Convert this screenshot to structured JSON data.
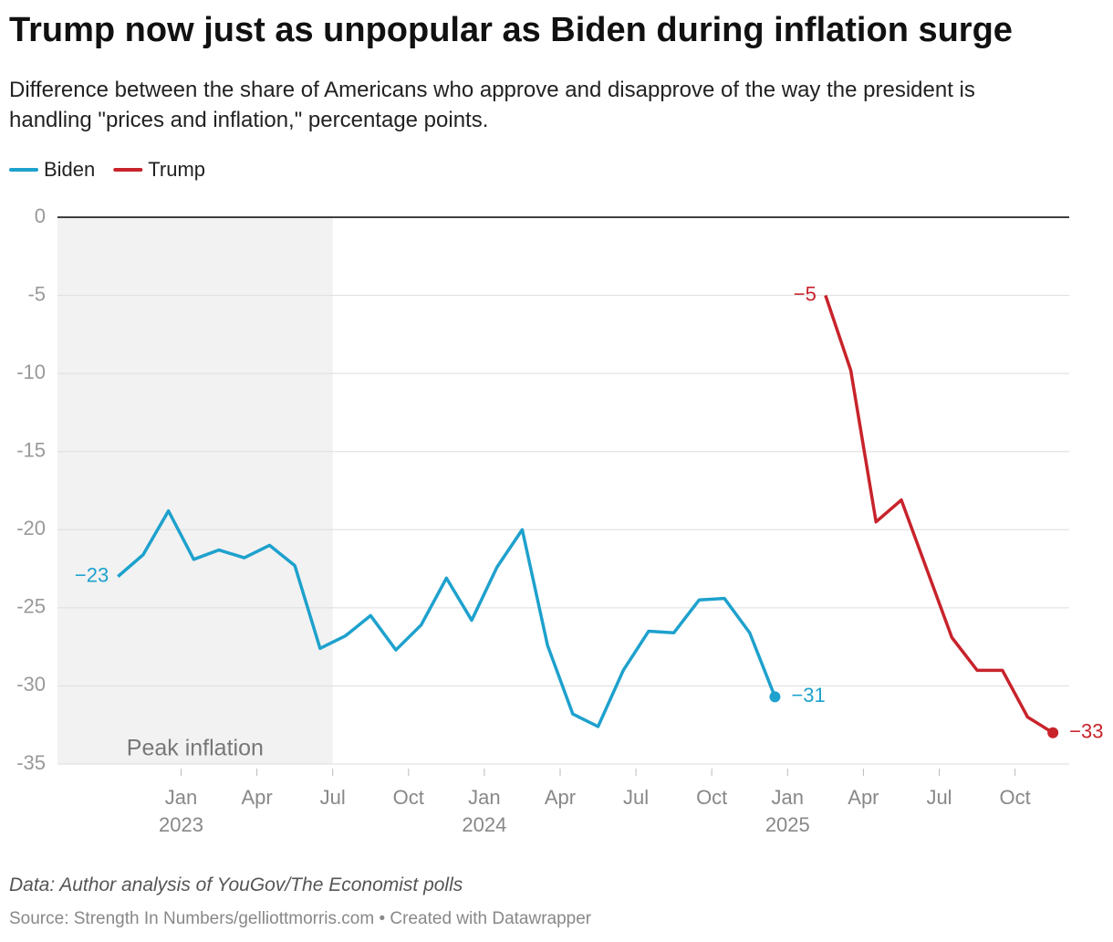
{
  "chart_data": {
    "type": "line",
    "title": "Trump now just as unpopular as Biden during inflation surge",
    "subtitle": "Difference between the share of Americans who approve and disapprove of the way the president is handling \"prices and inflation,\" percentage points.",
    "notes": "Data: Author analysis of YouGov/The Economist polls",
    "source": "Source: Strength In Numbers/gelliottmorris.com • Created with Datawrapper",
    "highlight": {
      "label": "Peak inflation",
      "from": "2022-08",
      "to": "2023-07",
      "color": "#f2f2f2"
    },
    "xlim": [
      "2022-08",
      "2025-12"
    ],
    "xticks": [
      {
        "value": "2023-01",
        "label": "Jan 2023"
      },
      {
        "value": "2023-04",
        "label": "Apr"
      },
      {
        "value": "2023-07",
        "label": "Jul"
      },
      {
        "value": "2023-10",
        "label": "Oct"
      },
      {
        "value": "2024-01",
        "label": "Jan 2024"
      },
      {
        "value": "2024-04",
        "label": "Apr"
      },
      {
        "value": "2024-07",
        "label": "Jul"
      },
      {
        "value": "2024-10",
        "label": "Oct"
      },
      {
        "value": "2025-01",
        "label": "Jan 2025"
      },
      {
        "value": "2025-04",
        "label": "Apr"
      },
      {
        "value": "2025-07",
        "label": "Jul"
      },
      {
        "value": "2025-10",
        "label": "Oct"
      }
    ],
    "ylim": [
      -35,
      0
    ],
    "yticks": [
      0,
      -5,
      -10,
      -15,
      -20,
      -25,
      -30,
      -35
    ],
    "grid": true,
    "legend": "top-left",
    "series": [
      {
        "name": "Biden",
        "color": "#1ea1cd",
        "x": [
          "2022-10",
          "2022-11",
          "2022-12",
          "2023-01",
          "2023-02",
          "2023-03",
          "2023-04",
          "2023-05",
          "2023-06",
          "2023-07",
          "2023-08",
          "2023-09",
          "2023-10",
          "2023-11",
          "2023-12",
          "2024-01",
          "2024-02",
          "2024-03",
          "2024-04",
          "2024-05",
          "2024-06",
          "2024-07",
          "2024-08",
          "2024-09",
          "2024-10",
          "2024-11",
          "2024-12"
        ],
        "values": [
          -23,
          -21.6,
          -18.8,
          -21.9,
          -21.3,
          -21.8,
          -21.0,
          -22.3,
          -27.6,
          -26.8,
          -25.5,
          -27.7,
          -26.1,
          -23.1,
          -25.8,
          -22.4,
          -20.0,
          -27.4,
          -31.8,
          -32.6,
          -29.0,
          -26.5,
          -26.6,
          -24.5,
          -24.4,
          -26.6,
          -30.7
        ],
        "value_labels": [
          "−23",
          null,
          null,
          null,
          null,
          null,
          null,
          null,
          null,
          null,
          null,
          null,
          null,
          null,
          null,
          null,
          null,
          null,
          null,
          null,
          null,
          null,
          null,
          null,
          null,
          null,
          "−31"
        ]
      },
      {
        "name": "Trump",
        "color": "#c8232b",
        "x": [
          "2025-02",
          "2025-03",
          "2025-04",
          "2025-05",
          "2025-06",
          "2025-07",
          "2025-08",
          "2025-09",
          "2025-10",
          "2025-11"
        ],
        "values": [
          -5,
          -9.8,
          -19.5,
          -18.1,
          -22.5,
          -26.9,
          -29.0,
          -29.0,
          -32.0,
          -33
        ],
        "value_labels": [
          "−5",
          null,
          null,
          null,
          null,
          null,
          null,
          null,
          null,
          "−33"
        ]
      }
    ]
  }
}
